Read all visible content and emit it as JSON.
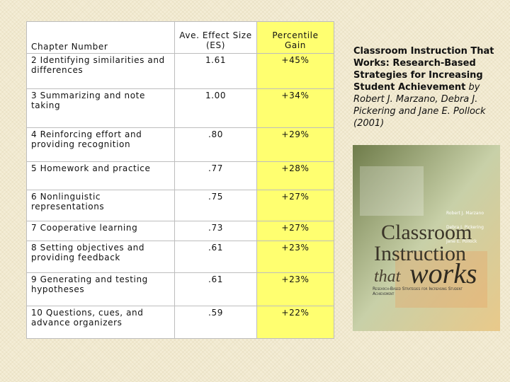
{
  "table": {
    "header": [
      "Chapter Number",
      "Ave. Effect Size (ES)",
      "Percentile Gain"
    ],
    "rows": [
      [
        "2  Identifying similarities and differences",
        "1.61",
        "+45%"
      ],
      [
        "3  Summarizing and note taking",
        "1.00",
        "+34%"
      ],
      [
        "4 Reinforcing effort and providing recognition",
        ".80",
        "+29%"
      ],
      [
        "5  Homework and practice",
        ".77",
        "+28%"
      ],
      [
        "6  Nonlinguistic representations",
        ".75",
        "+27%"
      ],
      [
        "7  Cooperative learning",
        ".73",
        "+27%"
      ],
      [
        "8  Setting objectives and providing feedback",
        ".61",
        "+23%"
      ],
      [
        "9 Generating and testing hypotheses",
        ".61",
        "+23%"
      ],
      [
        "10 Questions, cues, and advance organizers",
        ".59",
        "+22%"
      ]
    ]
  },
  "caption": {
    "title": "Classroom Instruction That Works: Research-Based Strategies for Increasing Student Achievement",
    "byline": "by Robert J. Marzano, Debra J. Pickering and Jane E. Pollock (2001)"
  },
  "cover": {
    "title_lines": [
      "Classroom",
      "Instruction"
    ],
    "that": "that",
    "works": "works",
    "subtitle": "Research-Based Strategies for Increasing Student Achievement",
    "authors": [
      "Robert J. Marzano",
      "Debra J. Pickering",
      "Jane E. Pollock"
    ]
  }
}
